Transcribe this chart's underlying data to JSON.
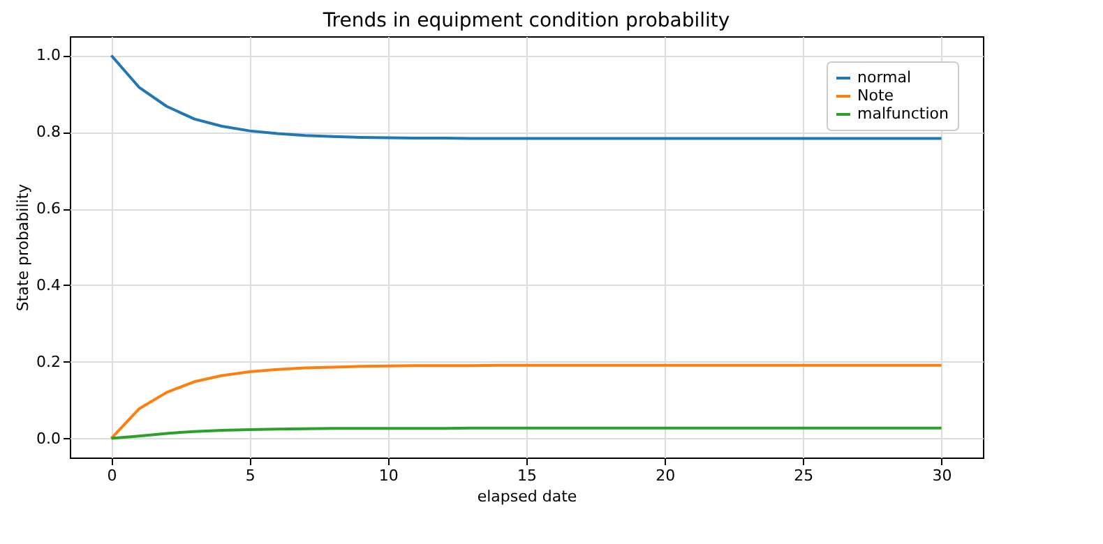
{
  "chart_data": {
    "type": "line",
    "title": "Trends in equipment condition probability",
    "xlabel": "elapsed date",
    "ylabel": "State probability",
    "x": [
      0,
      1,
      2,
      3,
      4,
      5,
      6,
      7,
      8,
      9,
      10,
      11,
      12,
      13,
      14,
      15,
      16,
      17,
      18,
      19,
      20,
      21,
      22,
      23,
      24,
      25,
      26,
      27,
      28,
      29,
      30
    ],
    "series": [
      {
        "name": "normal",
        "color": "#1f77b4",
        "values": [
          1.0,
          0.917,
          0.867,
          0.834,
          0.815,
          0.803,
          0.796,
          0.791,
          0.788,
          0.786,
          0.785,
          0.784,
          0.784,
          0.783,
          0.783,
          0.783,
          0.783,
          0.783,
          0.783,
          0.783,
          0.783,
          0.783,
          0.783,
          0.783,
          0.783,
          0.783,
          0.783,
          0.783,
          0.783,
          0.783,
          0.783
        ]
      },
      {
        "name": "Note",
        "color": "#ff7f0e",
        "values": [
          0,
          0.077,
          0.12,
          0.148,
          0.164,
          0.174,
          0.18,
          0.184,
          0.186,
          0.188,
          0.189,
          0.19,
          0.19,
          0.19,
          0.191,
          0.191,
          0.191,
          0.191,
          0.191,
          0.191,
          0.191,
          0.191,
          0.191,
          0.191,
          0.191,
          0.191,
          0.191,
          0.191,
          0.191,
          0.191,
          0.191
        ]
      },
      {
        "name": "malfunction",
        "color": "#2ca02c",
        "values": [
          0,
          0.006,
          0.013,
          0.018,
          0.021,
          0.023,
          0.024,
          0.025,
          0.026,
          0.026,
          0.026,
          0.026,
          0.026,
          0.027,
          0.027,
          0.027,
          0.027,
          0.027,
          0.027,
          0.027,
          0.027,
          0.027,
          0.027,
          0.027,
          0.027,
          0.027,
          0.027,
          0.027,
          0.027,
          0.027,
          0.027
        ]
      }
    ],
    "xlim": [
      -1.5,
      31.5
    ],
    "xticks": [
      0,
      5,
      10,
      15,
      20,
      25,
      30
    ],
    "ylim": [
      -0.05,
      1.05
    ],
    "yticks": [
      {
        "value": 0,
        "label": "0.0"
      },
      {
        "value": 0.2,
        "label": "0.2"
      },
      {
        "value": 0.4,
        "label": "0.4"
      },
      {
        "value": 0.6,
        "label": "0.6"
      },
      {
        "value": 0.8,
        "label": "0.8"
      },
      {
        "value": 1,
        "label": "1.0"
      }
    ],
    "grid": true,
    "legend": "top right",
    "marker": "none",
    "line_style": "solid"
  }
}
